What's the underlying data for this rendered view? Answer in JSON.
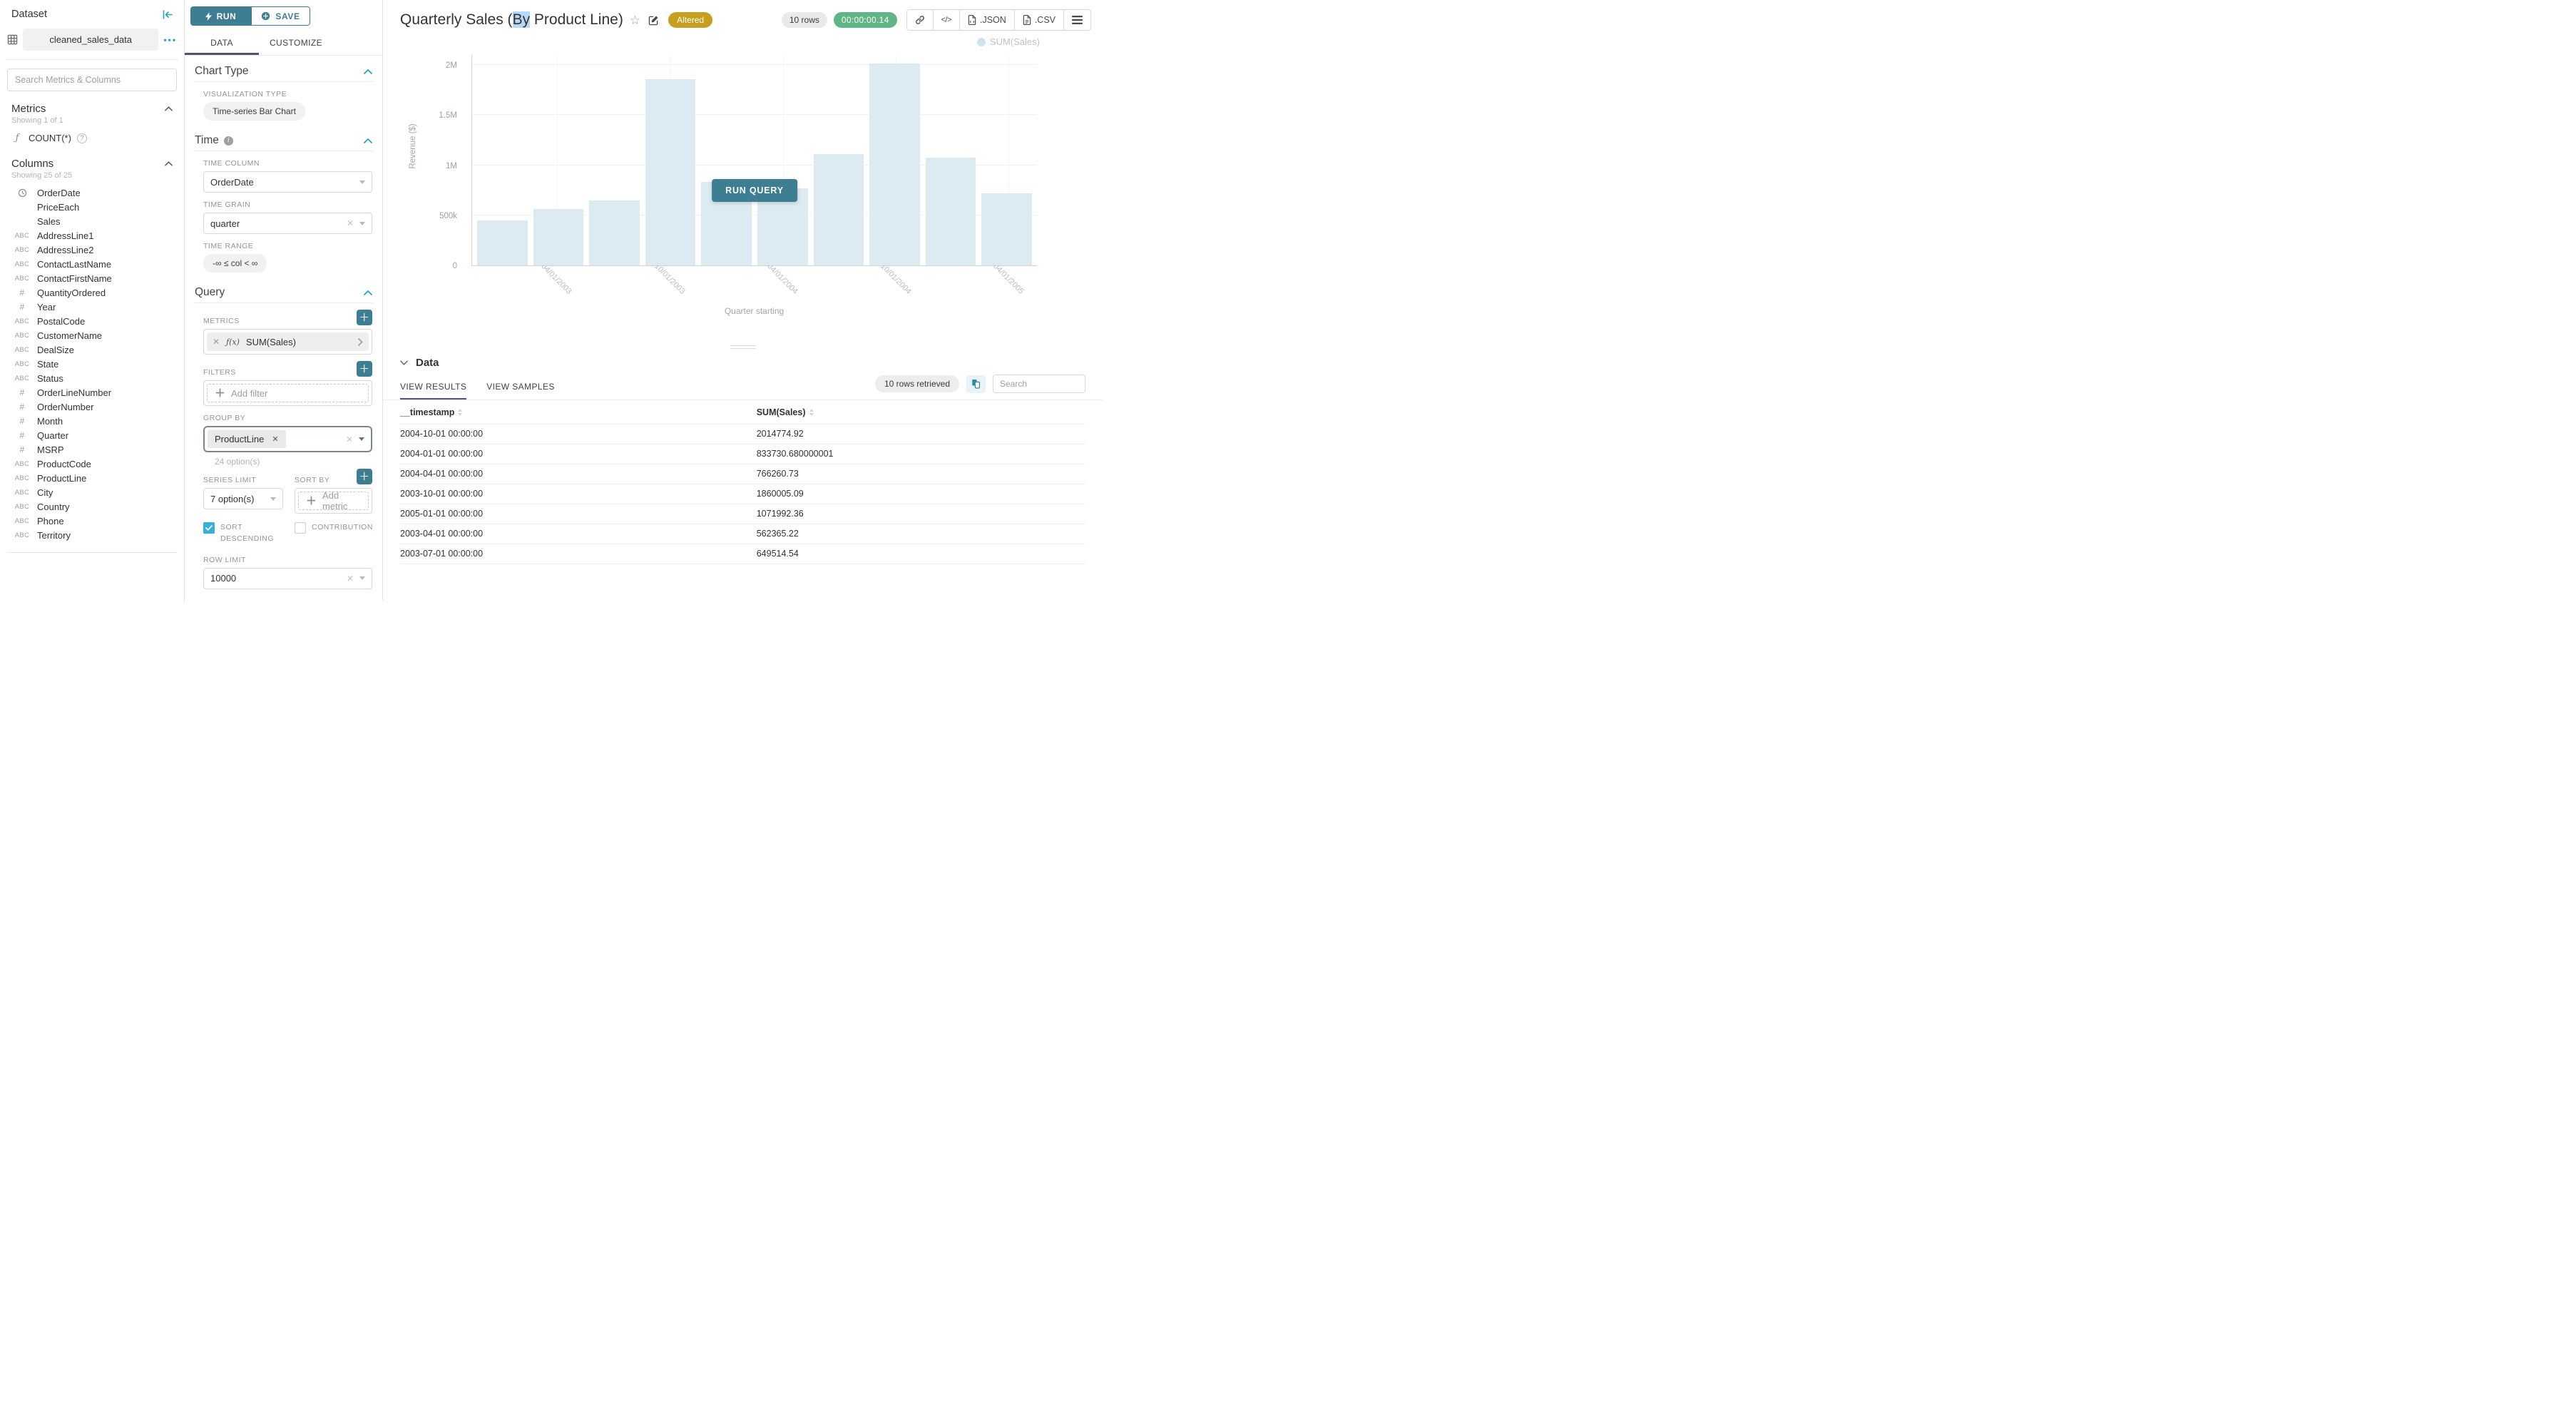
{
  "colors": {
    "button_teal": "#3d7e92",
    "accent_teal": "#2aa2c6",
    "checkbox_teal": "#33b1d7",
    "tab_underline": "#4e546f",
    "altered_badge_bg": "#c59f1d",
    "timer_badge_bg": "#5fb585",
    "bar_fill": "#dcebf2",
    "title_selection": "#b5d9f8"
  },
  "dataset_panel": {
    "title": "Dataset",
    "dataset_name": "cleaned_sales_data",
    "search_placeholder": "Search Metrics & Columns",
    "metrics": {
      "title": "Metrics",
      "showing": "Showing 1 of 1",
      "items": [
        {
          "icon": "function",
          "label": "COUNT(*)"
        }
      ]
    },
    "columns": {
      "title": "Columns",
      "showing": "Showing 25 of 25",
      "items": [
        {
          "icon": "clock",
          "label": "OrderDate"
        },
        {
          "icon": "none",
          "label": "PriceEach"
        },
        {
          "icon": "none",
          "label": "Sales"
        },
        {
          "icon": "abc",
          "label": "AddressLine1"
        },
        {
          "icon": "abc",
          "label": "AddressLine2"
        },
        {
          "icon": "abc",
          "label": "ContactLastName"
        },
        {
          "icon": "abc",
          "label": "ContactFirstName"
        },
        {
          "icon": "num",
          "label": "QuantityOrdered"
        },
        {
          "icon": "num",
          "label": "Year"
        },
        {
          "icon": "abc",
          "label": "PostalCode"
        },
        {
          "icon": "abc",
          "label": "CustomerName"
        },
        {
          "icon": "abc",
          "label": "DealSize"
        },
        {
          "icon": "abc",
          "label": "State"
        },
        {
          "icon": "abc",
          "label": "Status"
        },
        {
          "icon": "num",
          "label": "OrderLineNumber"
        },
        {
          "icon": "num",
          "label": "OrderNumber"
        },
        {
          "icon": "num",
          "label": "Month"
        },
        {
          "icon": "num",
          "label": "Quarter"
        },
        {
          "icon": "num",
          "label": "MSRP"
        },
        {
          "icon": "abc",
          "label": "ProductCode"
        },
        {
          "icon": "abc",
          "label": "ProductLine"
        },
        {
          "icon": "abc",
          "label": "City"
        },
        {
          "icon": "abc",
          "label": "Country"
        },
        {
          "icon": "abc",
          "label": "Phone"
        },
        {
          "icon": "abc",
          "label": "Territory"
        }
      ]
    }
  },
  "control_panel": {
    "run_label": "RUN",
    "save_label": "SAVE",
    "tabs": [
      "DATA",
      "CUSTOMIZE"
    ],
    "chart_type": {
      "title": "Chart Type",
      "viz_type_label": "VISUALIZATION TYPE",
      "viz_type": "Time-series Bar Chart"
    },
    "time": {
      "title": "Time",
      "time_column_label": "TIME COLUMN",
      "time_column": "OrderDate",
      "time_grain_label": "TIME GRAIN",
      "time_grain": "quarter",
      "time_range_label": "TIME RANGE",
      "time_range": "-∞ ≤ col < ∞"
    },
    "query": {
      "title": "Query",
      "metrics_label": "METRICS",
      "metric_fx": "ƒ(x)",
      "metric_chip": "SUM(Sales)",
      "filters_label": "FILTERS",
      "add_filter": "Add filter",
      "group_by_label": "GROUP BY",
      "group_by_chip": "ProductLine",
      "group_by_options": "24 option(s)",
      "series_limit_label": "SERIES LIMIT",
      "series_limit_value": "7 option(s)",
      "sort_by_label": "SORT BY",
      "add_metric": "Add metric",
      "sort_descending_label": "SORT DESCENDING",
      "contribution_label": "CONTRIBUTION",
      "row_limit_label": "ROW LIMIT",
      "row_limit_value": "10000"
    }
  },
  "main": {
    "header": {
      "title_pre": "Quarterly Sales (",
      "title_selected": "By",
      "title_post": " Product Line)",
      "altered_badge": "Altered",
      "rows_badge": "10 rows",
      "timer": "00:00:00.14",
      "export_json_label": ".JSON",
      "export_csv_label": ".CSV"
    },
    "run_query_label": "RUN QUERY",
    "data_panel": {
      "title": "Data",
      "tabs": [
        "VIEW RESULTS",
        "VIEW SAMPLES"
      ],
      "rows_retrieved": "10 rows retrieved",
      "search_placeholder": "Search",
      "table": {
        "headers": [
          "__timestamp",
          "SUM(Sales)"
        ],
        "rows": [
          [
            "2004-10-01 00:00:00",
            "2014774.92"
          ],
          [
            "2004-01-01 00:00:00",
            "833730.680000001"
          ],
          [
            "2004-04-01 00:00:00",
            "766260.73"
          ],
          [
            "2003-10-01 00:00:00",
            "1860005.09"
          ],
          [
            "2005-01-01 00:00:00",
            "1071992.36"
          ],
          [
            "2003-04-01 00:00:00",
            "562365.22"
          ],
          [
            "2003-07-01 00:00:00",
            "649514.54"
          ]
        ]
      }
    }
  },
  "chart_data": {
    "type": "bar",
    "series_name": "SUM(Sales)",
    "x": [
      "2003-01-01",
      "2003-04-01",
      "2003-07-01",
      "2003-10-01",
      "2004-01-01",
      "2004-04-01",
      "2004-07-01",
      "2004-10-01",
      "2005-01-01",
      "2005-04-01"
    ],
    "values": [
      445094.69,
      562365.22,
      649514.54,
      1860005.09,
      833730.68,
      766260.73,
      1109396.27,
      2014774.92,
      1071992.36,
      719494.35
    ],
    "xlabel": "Quarter starting",
    "ylabel": "Revenue ($)",
    "ylim": [
      0,
      2000000
    ],
    "yticks": [
      {
        "value": 0,
        "label": "0"
      },
      {
        "value": 500000,
        "label": "500k"
      },
      {
        "value": 1000000,
        "label": "1M"
      },
      {
        "value": 1500000,
        "label": "1.5M"
      },
      {
        "value": 2000000,
        "label": "2M"
      }
    ],
    "xticks": [
      {
        "index": 1,
        "label": "04/01/2003"
      },
      {
        "index": 3,
        "label": "10/01/2003"
      },
      {
        "index": 5,
        "label": "04/01/2004"
      },
      {
        "index": 7,
        "label": "10/01/2004"
      },
      {
        "index": 9,
        "label": "04/01/2005"
      }
    ],
    "grid": true,
    "legend_position": "top-right",
    "bar_color": "#dcebf2"
  }
}
